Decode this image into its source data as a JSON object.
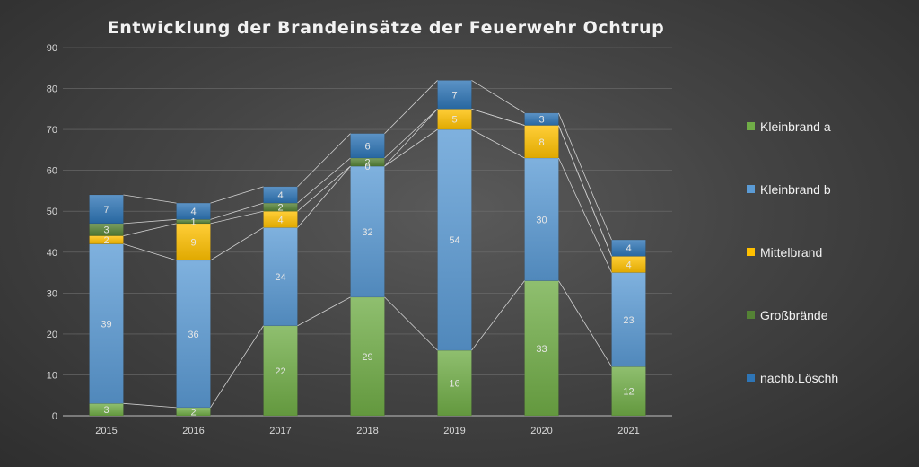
{
  "chart_data": {
    "type": "bar",
    "stacked": true,
    "title": "Entwicklung der Brandeinsätze der Feuerwehr Ochtrup",
    "xlabel": "",
    "ylabel": "",
    "categories": [
      "2015",
      "2016",
      "2017",
      "2018",
      "2019",
      "2020",
      "2021"
    ],
    "ylim": [
      0,
      90
    ],
    "yticks": [
      0,
      10,
      20,
      30,
      40,
      50,
      60,
      70,
      80,
      90
    ],
    "grid": true,
    "series_lines": true,
    "legend_position": "right",
    "series": [
      {
        "name": "Kleinbrand a",
        "values": [
          3,
          2,
          22,
          29,
          16,
          33,
          12
        ],
        "color": "#70ad47"
      },
      {
        "name": "Kleinbrand b",
        "values": [
          39,
          36,
          24,
          32,
          54,
          30,
          23
        ],
        "color": "#5b9bd5"
      },
      {
        "name": "Mittelbrand",
        "values": [
          2,
          9,
          4,
          0,
          5,
          8,
          4
        ],
        "color": "#ffc000"
      },
      {
        "name": "Großbrände",
        "values": [
          3,
          1,
          2,
          2,
          0,
          0,
          0
        ],
        "color": "#548235"
      },
      {
        "name": "nachb.Löschh",
        "values": [
          7,
          4,
          4,
          6,
          7,
          3,
          4
        ],
        "color": "#2e75b6"
      }
    ]
  }
}
